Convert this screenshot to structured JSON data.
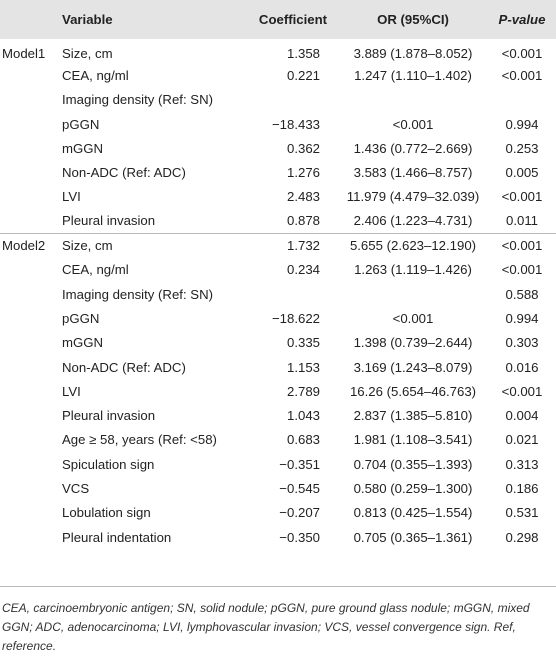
{
  "header": {
    "variable": "Variable",
    "coefficient": "Coefficient",
    "or": "OR (95%CI)",
    "pvalue": "P-value"
  },
  "models": [
    {
      "label": "Model1",
      "rows": [
        {
          "variable": "Size, cm",
          "coefficient": "1.358",
          "or": "3.889 (1.878–8.052)",
          "p": "<0.001"
        },
        {
          "variable": "CEA, ng/ml",
          "coefficient": "0.221",
          "or": "1.247 (1.110–1.402)",
          "p": "<0.001"
        },
        {
          "variable": "Imaging density (Ref: SN)",
          "coefficient": "",
          "or": "",
          "p": ""
        },
        {
          "variable": "pGGN",
          "coefficient": "−18.433",
          "or": "<0.001",
          "p": "0.994"
        },
        {
          "variable": "mGGN",
          "coefficient": "0.362",
          "or": "1.436 (0.772–2.669)",
          "p": "0.253"
        },
        {
          "variable": "Non-ADC (Ref: ADC)",
          "coefficient": "1.276",
          "or": "3.583 (1.466–8.757)",
          "p": "0.005"
        },
        {
          "variable": "LVI",
          "coefficient": "2.483",
          "or": "11.979 (4.479–32.039)",
          "p": "<0.001"
        },
        {
          "variable": "Pleural invasion",
          "coefficient": "0.878",
          "or": "2.406 (1.223–4.731)",
          "p": "0.011"
        }
      ]
    },
    {
      "label": "Model2",
      "rows": [
        {
          "variable": "Size, cm",
          "coefficient": "1.732",
          "or": "5.655 (2.623–12.190)",
          "p": "<0.001"
        },
        {
          "variable": "CEA, ng/ml",
          "coefficient": "0.234",
          "or": "1.263 (1.119–1.426)",
          "p": "<0.001"
        },
        {
          "variable": "Imaging density (Ref: SN)",
          "coefficient": "",
          "or": "",
          "p": "0.588"
        },
        {
          "variable": "pGGN",
          "coefficient": "−18.622",
          "or": "<0.001",
          "p": "0.994"
        },
        {
          "variable": "mGGN",
          "coefficient": "0.335",
          "or": "1.398 (0.739–2.644)",
          "p": "0.303"
        },
        {
          "variable": "Non-ADC (Ref: ADC)",
          "coefficient": "1.153",
          "or": "3.169 (1.243–8.079)",
          "p": "0.016"
        },
        {
          "variable": "LVI",
          "coefficient": "2.789",
          "or": "16.26 (5.654–46.763)",
          "p": "<0.001"
        },
        {
          "variable": "Pleural invasion",
          "coefficient": "1.043",
          "or": "2.837 (1.385–5.810)",
          "p": "0.004"
        },
        {
          "variable": "Age ≥ 58, years (Ref: <58)",
          "coefficient": "0.683",
          "or": "1.981 (1.108–3.541)",
          "p": "0.021"
        },
        {
          "variable": "Spiculation sign",
          "coefficient": "−0.351",
          "or": "0.704 (0.355–1.393)",
          "p": "0.313"
        },
        {
          "variable": "VCS",
          "coefficient": "−0.545",
          "or": "0.580 (0.259–1.300)",
          "p": "0.186"
        },
        {
          "variable": "Lobulation sign",
          "coefficient": "−0.207",
          "or": "0.813 (0.425–1.554)",
          "p": "0.531"
        },
        {
          "variable": "Pleural indentation",
          "coefficient": "−0.350",
          "or": "0.705 (0.365–1.361)",
          "p": "0.298"
        }
      ]
    }
  ],
  "footnote": "CEA, carcinoembryonic antigen; SN, solid nodule; pGGN, pure ground glass nodule; mGGN, mixed GGN; ADC, adenocarcinoma; LVI, lymphovascular invasion; VCS, vessel convergence sign. Ref, reference."
}
